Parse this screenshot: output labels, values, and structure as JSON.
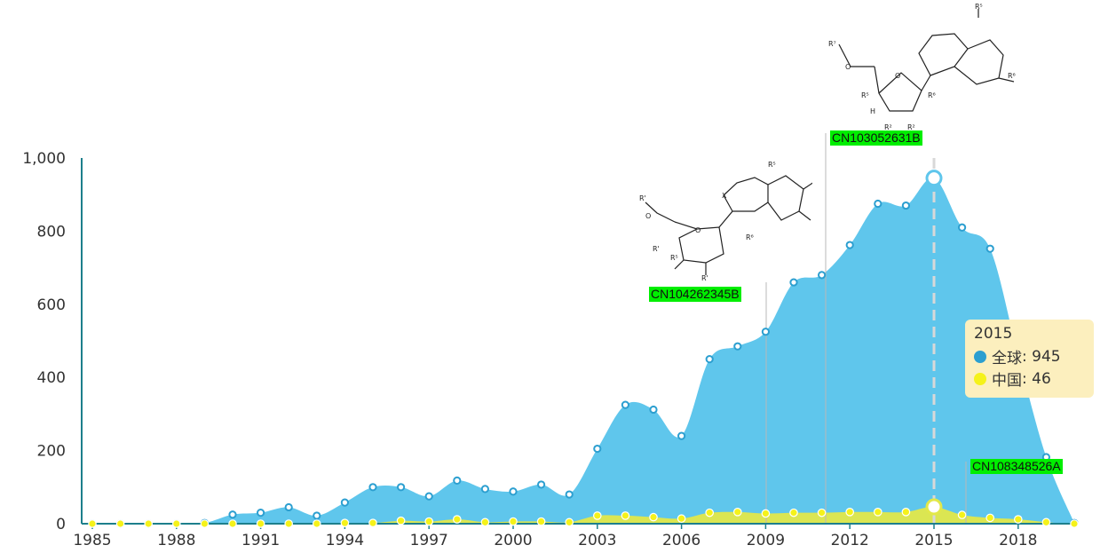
{
  "chart_data": {
    "type": "area",
    "x": [
      1985,
      1986,
      1987,
      1988,
      1989,
      1990,
      1991,
      1992,
      1993,
      1994,
      1995,
      1996,
      1997,
      1998,
      1999,
      2000,
      2001,
      2002,
      2003,
      2004,
      2005,
      2006,
      2007,
      2008,
      2009,
      2010,
      2011,
      2012,
      2013,
      2014,
      2015,
      2016,
      2017,
      2018,
      2019,
      2020
    ],
    "x_tick_labels": [
      "1985",
      "1988",
      "1991",
      "1994",
      "1997",
      "2000",
      "2003",
      "2006",
      "2009",
      "2012",
      "2015",
      "2018"
    ],
    "series": [
      {
        "name": "全球",
        "color": "#5fc6ec",
        "values": [
          0,
          0,
          0,
          0,
          2,
          25,
          30,
          45,
          22,
          58,
          100,
          100,
          75,
          118,
          95,
          88,
          107,
          80,
          205,
          325,
          312,
          240,
          450,
          485,
          525,
          660,
          680,
          762,
          875,
          870,
          945,
          810,
          752,
          460,
          182,
          2
        ]
      },
      {
        "name": "中国",
        "color": "#e2e84a",
        "values": [
          0,
          0,
          0,
          0,
          0,
          0,
          0,
          0,
          0,
          2,
          2,
          8,
          6,
          12,
          4,
          6,
          6,
          4,
          22,
          22,
          18,
          14,
          30,
          32,
          28,
          30,
          30,
          32,
          32,
          32,
          46,
          24,
          16,
          12,
          4,
          0
        ]
      }
    ],
    "ylim": [
      0,
      1000
    ],
    "y_ticks": [
      "0",
      "200",
      "400",
      "600",
      "800",
      "1,000"
    ],
    "grid": false,
    "highlight": {
      "year": "2015",
      "series1_label": "全球",
      "series1_value": "945",
      "series2_label": "中国",
      "series2_value": "46"
    },
    "annotations": [
      {
        "label": "CN104262345B",
        "year": 2009
      },
      {
        "label": "CN103052631B",
        "year": 2011
      },
      {
        "label": "CN108348526A",
        "year": 2016
      }
    ]
  },
  "colors": {
    "axis": "#1d7f8c",
    "global_dot": "#2c9fd0",
    "china_dot": "#f5f21a",
    "tag": "#00ee00",
    "tooltip_bg": "#fcefbe"
  }
}
